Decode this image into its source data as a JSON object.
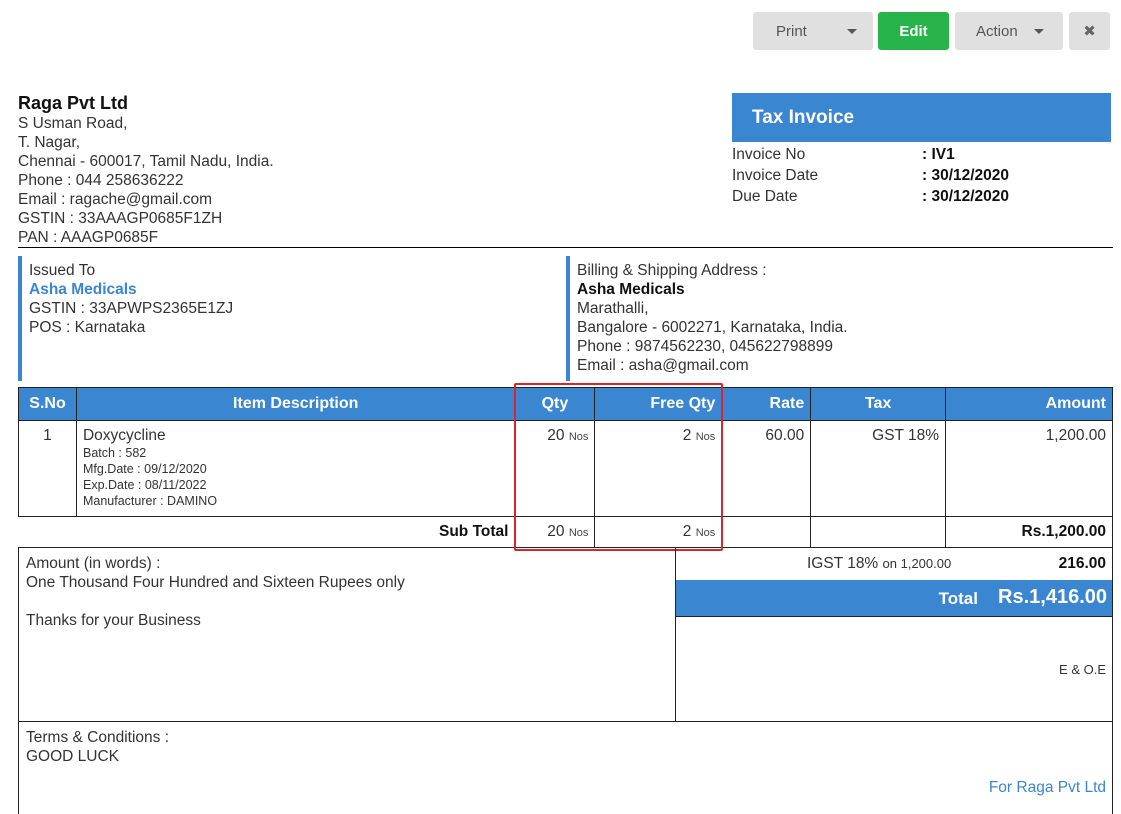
{
  "toolbar": {
    "print_label": "Print",
    "edit_label": "Edit",
    "action_label": "Action",
    "close_glyph": "✖"
  },
  "company": {
    "name": "Raga Pvt Ltd",
    "address_lines": [
      "S Usman Road,",
      "T. Nagar,",
      "Chennai - 600017, Tamil Nadu, India."
    ],
    "phone": "Phone : 044 258636222",
    "email": "Email : ragache@gmail.com",
    "gstin": "GSTIN : 33AAAGP0685F1ZH",
    "pan": "PAN : AAAGP0685F"
  },
  "invoice": {
    "title": "Tax Invoice",
    "fields": [
      {
        "label": "Invoice No",
        "value": ": IV1"
      },
      {
        "label": "Invoice Date",
        "value": ": 30/12/2020"
      },
      {
        "label": "Due Date",
        "value": ": 30/12/2020"
      }
    ]
  },
  "issued_to": {
    "heading": "Issued To",
    "name": "Asha Medicals",
    "gstin": "GSTIN : 33APWPS2365E1ZJ",
    "pos": "POS : Karnataka"
  },
  "billing": {
    "heading": "Billing & Shipping Address :",
    "name": "Asha Medicals",
    "lines": [
      "Marathalli,",
      "Bangalore - 6002271, Karnataka, India.",
      "Phone : 9874562230, 045622798899",
      "Email : asha@gmail.com"
    ]
  },
  "table": {
    "headers": [
      "S.No",
      "Item Description",
      "Qty",
      "Free Qty",
      "Rate",
      "Tax",
      "Amount"
    ],
    "rows": [
      {
        "sno": "1",
        "item": "Doxycycline",
        "details": [
          "Batch : 582",
          "Mfg.Date : 09/12/2020",
          "Exp.Date : 08/11/2022",
          "Manufacturer : DAMINO"
        ],
        "qty": "20",
        "qty_unit": "Nos",
        "free_qty": "2",
        "free_unit": "Nos",
        "rate": "60.00",
        "tax": "GST 18%",
        "amount": "1,200.00"
      }
    ],
    "subtotal": {
      "label": "Sub Total",
      "qty": "20",
      "qty_unit": "Nos",
      "free_qty": "2",
      "free_unit": "Nos",
      "amount": "Rs.1,200.00"
    }
  },
  "summary": {
    "words_label": "Amount (in words) :",
    "words_value": "One Thousand Four Hundred and Sixteen Rupees only",
    "thanks": "Thanks for your Business",
    "igst_label": "IGST 18%",
    "igst_on": "on 1,200.00",
    "igst_value": "216.00",
    "total_label": "Total",
    "total_value": "Rs.1,416.00",
    "eoe": "E & O.E"
  },
  "terms": {
    "heading": "Terms & Conditions :",
    "text": "GOOD LUCK",
    "signatory": "For Raga Pvt Ltd"
  },
  "colors": {
    "accent": "#3a86d1",
    "edit_button": "#27b44a",
    "highlight": "#d9232d"
  }
}
